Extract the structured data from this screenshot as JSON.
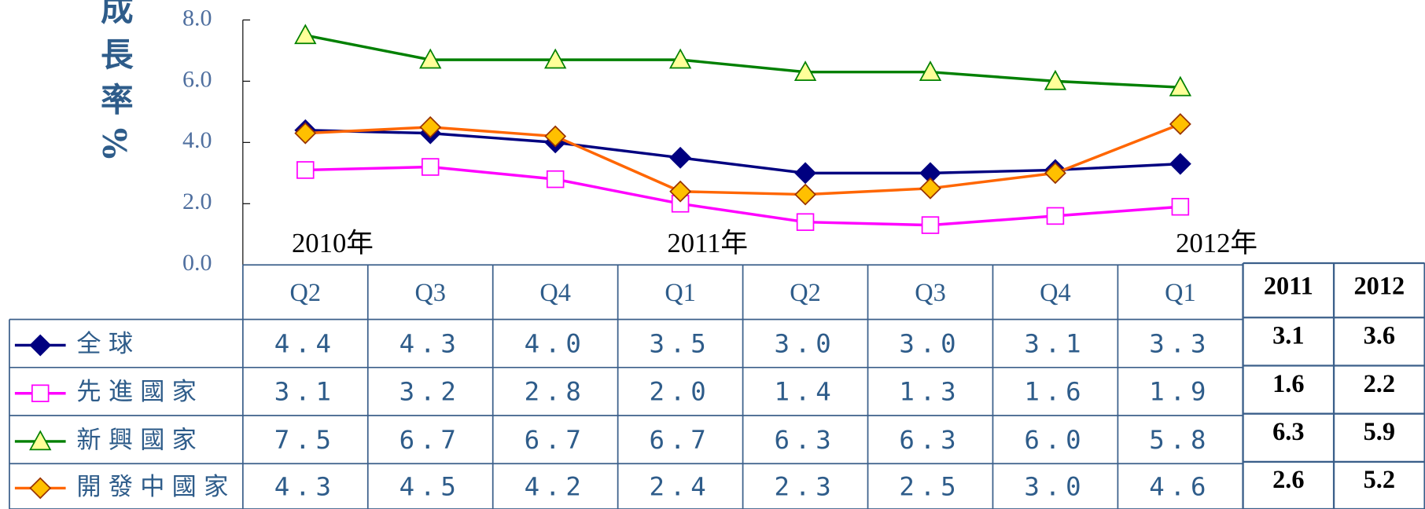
{
  "chart_data": {
    "type": "line",
    "y_label": "經濟成長率%",
    "categories": [
      "Q2",
      "Q3",
      "Q4",
      "Q1",
      "Q2",
      "Q3",
      "Q4",
      "Q1"
    ],
    "years": [
      "2010年",
      null,
      null,
      "2011年",
      null,
      null,
      null,
      "2012年"
    ],
    "ylim": [
      0,
      8
    ],
    "yticks": [
      {
        "value": 0,
        "label": "0.0"
      },
      {
        "value": 2,
        "label": "2.0"
      },
      {
        "value": 4,
        "label": "4.0"
      },
      {
        "value": 6,
        "label": "6.0"
      },
      {
        "value": 8,
        "label": "8.0"
      }
    ],
    "series": [
      {
        "name": "全球",
        "color": "#000080",
        "marker": "diamond",
        "marker_fill": "#000080",
        "values": [
          4.4,
          4.3,
          4.0,
          3.5,
          3.0,
          3.0,
          3.1,
          3.3
        ],
        "value_labels": [
          "4.4",
          "4.3",
          "4.0",
          "3.5",
          "3.0",
          "3.0",
          "3.1",
          "3.3"
        ]
      },
      {
        "name": "先進國家",
        "color": "#ff00ff",
        "marker": "square",
        "marker_fill": "#ffffff",
        "values": [
          3.1,
          3.2,
          2.8,
          2.0,
          1.4,
          1.3,
          1.6,
          1.9
        ],
        "value_labels": [
          "3.1",
          "3.2",
          "2.8",
          "2.0",
          "1.4",
          "1.3",
          "1.6",
          "1.9"
        ]
      },
      {
        "name": "新興國家",
        "color": "#008000",
        "marker": "triangle",
        "marker_fill": "#ffff99",
        "values": [
          7.5,
          6.7,
          6.7,
          6.7,
          6.3,
          6.3,
          6.0,
          5.8
        ],
        "value_labels": [
          "7.5",
          "6.7",
          "6.7",
          "6.7",
          "6.3",
          "6.3",
          "6.0",
          "5.8"
        ]
      },
      {
        "name": "開發中國家",
        "color": "#ff6600",
        "marker": "diamond",
        "marker_fill": "#ffc000",
        "marker_stroke": "#993300",
        "values": [
          4.3,
          4.5,
          4.2,
          2.4,
          2.3,
          2.5,
          3.0,
          4.6
        ],
        "value_labels": [
          "4.3",
          "4.5",
          "4.2",
          "2.4",
          "2.3",
          "2.5",
          "3.0",
          "4.6"
        ]
      }
    ],
    "annual": {
      "columns": [
        "2011",
        "2012"
      ],
      "rows": [
        [
          3.1,
          3.6
        ],
        [
          1.6,
          2.2
        ],
        [
          6.3,
          5.9
        ],
        [
          2.6,
          5.2
        ]
      ]
    }
  }
}
